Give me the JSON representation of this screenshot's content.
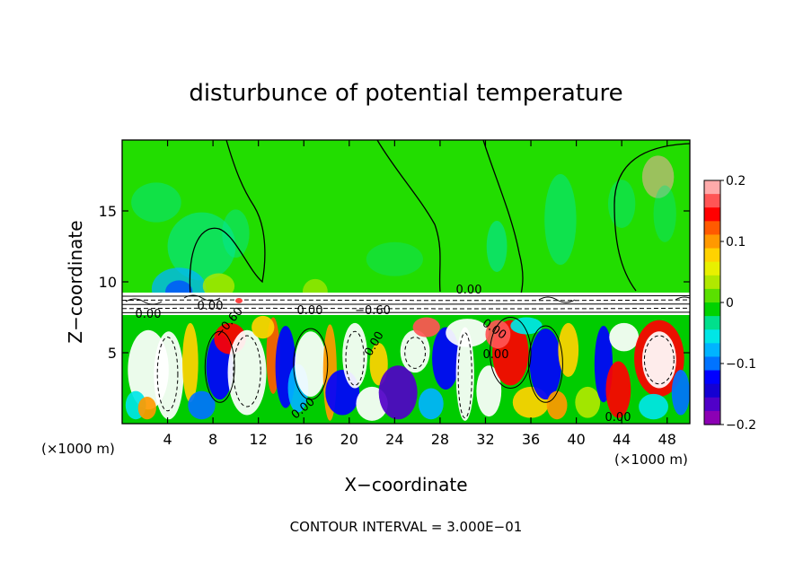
{
  "chart_data": {
    "type": "heatmap",
    "title": "disturbunce of potential temperature",
    "xlabel": "X−coordinate",
    "ylabel": "Z−coordinate",
    "x_unit_left": "(×1000 m)",
    "x_unit_right": "(×1000 m)",
    "xlim": [
      0,
      50
    ],
    "ylim": [
      0,
      20
    ],
    "x_ticks": [
      4,
      8,
      12,
      16,
      20,
      24,
      28,
      32,
      36,
      40,
      44,
      48
    ],
    "x_tick_labels": [
      "4",
      "8",
      "12",
      "16",
      "20",
      "24",
      "28",
      "32",
      "36",
      "40",
      "44",
      "48"
    ],
    "y_ticks": [
      5,
      10,
      15
    ],
    "y_tick_labels": [
      "5",
      "10",
      "15"
    ],
    "colorbar": {
      "min": -0.2,
      "max": 0.2,
      "ticks": [
        0.2,
        0.1,
        0,
        -0.1,
        -0.2
      ],
      "tick_labels": [
        "0.2",
        "0.1",
        "0",
        "−0.1",
        "−0.2"
      ],
      "colors": [
        "#ffaaaa",
        "#ff5555",
        "#ff0000",
        "#ff5a00",
        "#ff9900",
        "#ffd200",
        "#e8f000",
        "#b0e800",
        "#5ae000",
        "#00d200",
        "#00e08c",
        "#00e6e6",
        "#00b4ff",
        "#0073ff",
        "#0000ff",
        "#1400d2",
        "#5000c8",
        "#8c00b4"
      ]
    },
    "contour_labels": [
      "0.00",
      "0.00",
      "0.00",
      "−0.60",
      "−0.60",
      "0.00",
      "0.00",
      "0.00",
      "0.00",
      "0.00",
      "0.00"
    ],
    "background_level": 0,
    "layer_boundary_z": 9.2,
    "grid": false
  },
  "footer": {
    "contour_interval": "CONTOUR INTERVAL = 3.000E−01"
  },
  "colors": {
    "upper_field": "#22dd00",
    "frame": "#000000"
  }
}
